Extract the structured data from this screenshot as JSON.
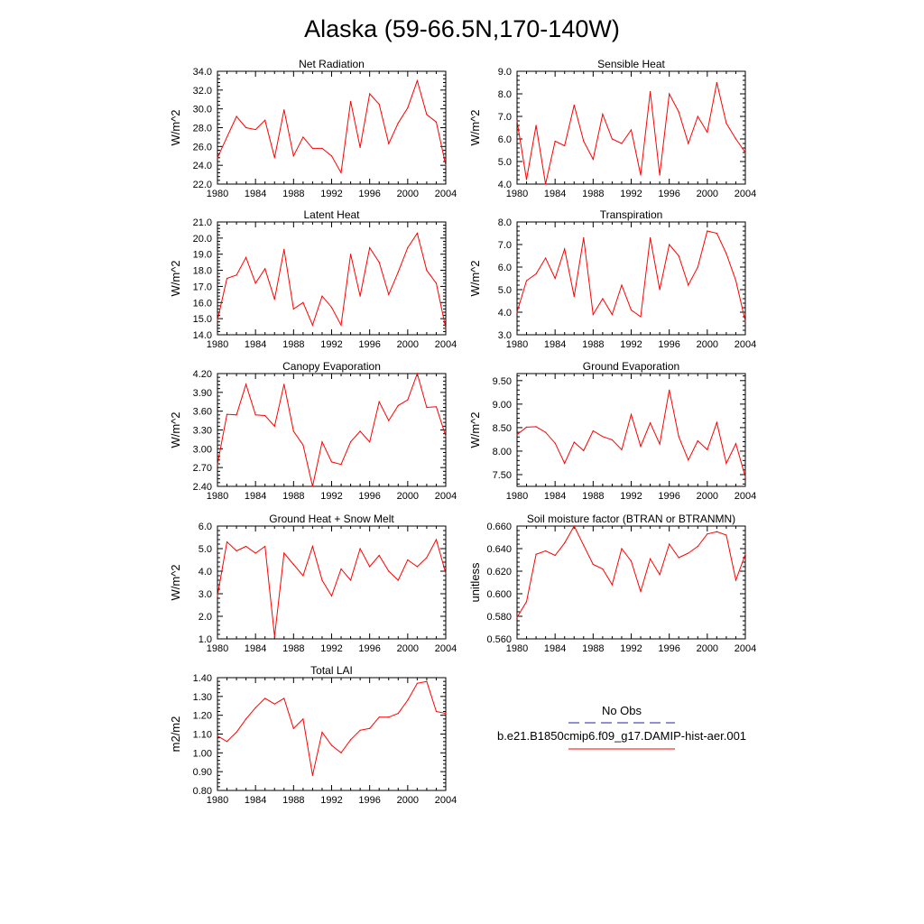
{
  "title": "Alaska (59-66.5N,170-140W)",
  "line_color": "#ff0000",
  "obs_color": "#2222aa",
  "legend": {
    "obs_label": "No Obs",
    "model_label": "b.e21.B1850cmip6.f09_g17.DAMIP-hist-aer.001"
  },
  "chart_data": [
    {
      "type": "line",
      "title": "Net Radiation",
      "ylabel": "W/m^2",
      "xlim": [
        1980,
        2004
      ],
      "ylim": [
        22.0,
        34.0
      ],
      "yticks": [
        "22.0",
        "24.0",
        "26.0",
        "28.0",
        "30.0",
        "32.0",
        "34.0"
      ],
      "xticks": [
        "1980",
        "1984",
        "1988",
        "1992",
        "1996",
        "2000",
        "2004"
      ],
      "x": [
        1980,
        1981,
        1982,
        1983,
        1984,
        1985,
        1986,
        1987,
        1988,
        1989,
        1990,
        1991,
        1992,
        1993,
        1994,
        1995,
        1996,
        1997,
        1998,
        1999,
        2000,
        2001,
        2002,
        2003,
        2004
      ],
      "series": [
        {
          "values": [
            24.8,
            27.0,
            29.2,
            28.0,
            27.8,
            28.8,
            24.8,
            29.9,
            25.0,
            27.0,
            25.8,
            25.8,
            25.0,
            23.2,
            30.8,
            25.9,
            31.6,
            30.5,
            26.3,
            28.5,
            30.1,
            33.0,
            29.4,
            28.6,
            24.0
          ]
        }
      ]
    },
    {
      "type": "line",
      "title": "Sensible Heat",
      "ylabel": "W/m^2",
      "xlim": [
        1980,
        2004
      ],
      "ylim": [
        4.0,
        9.0
      ],
      "yticks": [
        "4.0",
        "5.0",
        "6.0",
        "7.0",
        "8.0",
        "9.0"
      ],
      "xticks": [
        "1980",
        "1984",
        "1988",
        "1992",
        "1996",
        "2000",
        "2004"
      ],
      "x": [
        1980,
        1981,
        1982,
        1983,
        1984,
        1985,
        1986,
        1987,
        1988,
        1989,
        1990,
        1991,
        1992,
        1993,
        1994,
        1995,
        1996,
        1997,
        1998,
        1999,
        2000,
        2001,
        2002,
        2003,
        2004
      ],
      "series": [
        {
          "values": [
            6.8,
            4.2,
            6.6,
            4.0,
            5.9,
            5.7,
            7.5,
            5.9,
            5.1,
            7.1,
            6.0,
            5.8,
            6.4,
            4.4,
            8.1,
            4.4,
            8.0,
            7.2,
            5.8,
            7.0,
            6.3,
            8.5,
            6.7,
            6.0,
            5.4
          ]
        }
      ]
    },
    {
      "type": "line",
      "title": "Latent Heat",
      "ylabel": "W/m^2",
      "xlim": [
        1980,
        2004
      ],
      "ylim": [
        14.0,
        21.0
      ],
      "yticks": [
        "14.0",
        "15.0",
        "16.0",
        "17.0",
        "18.0",
        "19.0",
        "20.0",
        "21.0"
      ],
      "xticks": [
        "1980",
        "1984",
        "1988",
        "1992",
        "1996",
        "2000",
        "2004"
      ],
      "x": [
        1980,
        1981,
        1982,
        1983,
        1984,
        1985,
        1986,
        1987,
        1988,
        1989,
        1990,
        1991,
        1992,
        1993,
        1994,
        1995,
        1996,
        1997,
        1998,
        1999,
        2000,
        2001,
        2002,
        2003,
        2004
      ],
      "series": [
        {
          "values": [
            14.9,
            17.5,
            17.7,
            18.8,
            17.2,
            18.1,
            16.2,
            19.3,
            15.6,
            16.0,
            14.6,
            16.4,
            15.7,
            14.6,
            19.0,
            16.4,
            19.4,
            18.5,
            16.5,
            17.9,
            19.4,
            20.3,
            18.0,
            17.2,
            14.4
          ]
        }
      ]
    },
    {
      "type": "line",
      "title": "Transpiration",
      "ylabel": "W/m^2",
      "xlim": [
        1980,
        2004
      ],
      "ylim": [
        3.0,
        8.0
      ],
      "yticks": [
        "3.0",
        "4.0",
        "5.0",
        "6.0",
        "7.0",
        "8.0"
      ],
      "xticks": [
        "1980",
        "1984",
        "1988",
        "1992",
        "1996",
        "2000",
        "2004"
      ],
      "x": [
        1980,
        1981,
        1982,
        1983,
        1984,
        1985,
        1986,
        1987,
        1988,
        1989,
        1990,
        1991,
        1992,
        1993,
        1994,
        1995,
        1996,
        1997,
        1998,
        1999,
        2000,
        2001,
        2002,
        2003,
        2004
      ],
      "series": [
        {
          "values": [
            4.0,
            5.4,
            5.7,
            6.4,
            5.5,
            6.8,
            4.7,
            7.3,
            3.9,
            4.6,
            3.9,
            5.2,
            4.1,
            3.8,
            7.3,
            5.0,
            7.0,
            6.5,
            5.2,
            6.0,
            7.6,
            7.5,
            6.6,
            5.4,
            3.6
          ]
        }
      ]
    },
    {
      "type": "line",
      "title": "Canopy Evaporation",
      "ylabel": "W/m^2",
      "xlim": [
        1980,
        2004
      ],
      "ylim": [
        2.4,
        4.2
      ],
      "yticks": [
        "2.40",
        "2.70",
        "3.00",
        "3.30",
        "3.60",
        "3.90",
        "4.20"
      ],
      "xticks": [
        "1980",
        "1984",
        "1988",
        "1992",
        "1996",
        "2000",
        "2004"
      ],
      "x": [
        1980,
        1981,
        1982,
        1983,
        1984,
        1985,
        1986,
        1987,
        1988,
        1989,
        1990,
        1991,
        1992,
        1993,
        1994,
        1995,
        1996,
        1997,
        1998,
        1999,
        2000,
        2001,
        2002,
        2003,
        2004
      ],
      "series": [
        {
          "values": [
            2.75,
            3.55,
            3.54,
            4.03,
            3.54,
            3.53,
            3.36,
            4.03,
            3.28,
            3.06,
            2.4,
            3.11,
            2.79,
            2.75,
            3.11,
            3.28,
            3.11,
            3.75,
            3.45,
            3.69,
            3.78,
            4.2,
            3.66,
            3.67,
            3.2
          ]
        }
      ]
    },
    {
      "type": "line",
      "title": "Ground Evaporation",
      "ylabel": "W/m^2",
      "xlim": [
        1980,
        2004
      ],
      "ylim": [
        7.25,
        9.65
      ],
      "yticks": [
        "7.50",
        "8.00",
        "8.50",
        "9.00",
        "9.50"
      ],
      "xticks": [
        "1980",
        "1984",
        "1988",
        "1992",
        "1996",
        "2000",
        "2004"
      ],
      "x": [
        1980,
        1981,
        1982,
        1983,
        1984,
        1985,
        1986,
        1987,
        1988,
        1989,
        1990,
        1991,
        1992,
        1993,
        1994,
        1995,
        1996,
        1997,
        1998,
        1999,
        2000,
        2001,
        2002,
        2003,
        2004
      ],
      "series": [
        {
          "values": [
            8.35,
            8.51,
            8.52,
            8.4,
            8.17,
            7.74,
            8.19,
            8.01,
            8.43,
            8.31,
            8.24,
            8.03,
            8.78,
            8.1,
            8.6,
            8.15,
            9.3,
            8.31,
            7.81,
            8.22,
            8.03,
            8.61,
            7.74,
            8.16,
            7.45
          ]
        }
      ]
    },
    {
      "type": "line",
      "title": "Ground Heat + Snow Melt",
      "ylabel": "W/m^2",
      "xlim": [
        1980,
        2004
      ],
      "ylim": [
        1.0,
        6.0
      ],
      "yticks": [
        "1.0",
        "2.0",
        "3.0",
        "4.0",
        "5.0",
        "6.0"
      ],
      "xticks": [
        "1980",
        "1984",
        "1988",
        "1992",
        "1996",
        "2000",
        "2004"
      ],
      "x": [
        1980,
        1981,
        1982,
        1983,
        1984,
        1985,
        1986,
        1987,
        1988,
        1989,
        1990,
        1991,
        1992,
        1993,
        1994,
        1995,
        1996,
        1997,
        1998,
        1999,
        2000,
        2001,
        2002,
        2003,
        2004
      ],
      "series": [
        {
          "values": [
            2.9,
            5.3,
            4.9,
            5.1,
            4.8,
            5.1,
            1.1,
            4.8,
            4.3,
            3.8,
            5.1,
            3.6,
            2.9,
            4.1,
            3.6,
            5.0,
            4.2,
            4.7,
            4.0,
            3.6,
            4.5,
            4.2,
            4.6,
            5.4,
            3.9
          ]
        }
      ]
    },
    {
      "type": "line",
      "title": "Soil moisture factor (BTRAN or BTRANMN)",
      "ylabel": "unitless",
      "xlim": [
        1980,
        2004
      ],
      "ylim": [
        0.56,
        0.66
      ],
      "yticks": [
        "0.560",
        "0.580",
        "0.600",
        "0.620",
        "0.640",
        "0.660"
      ],
      "xticks": [
        "1980",
        "1984",
        "1988",
        "1992",
        "1996",
        "2000",
        "2004"
      ],
      "x": [
        1980,
        1981,
        1982,
        1983,
        1984,
        1985,
        1986,
        1987,
        1988,
        1989,
        1990,
        1991,
        1992,
        1993,
        1994,
        1995,
        1996,
        1997,
        1998,
        1999,
        2000,
        2001,
        2002,
        2003,
        2004
      ],
      "series": [
        {
          "values": [
            0.579,
            0.593,
            0.635,
            0.638,
            0.634,
            0.645,
            0.66,
            0.643,
            0.626,
            0.622,
            0.608,
            0.64,
            0.629,
            0.602,
            0.631,
            0.617,
            0.644,
            0.632,
            0.636,
            0.642,
            0.653,
            0.655,
            0.652,
            0.612,
            0.635
          ]
        }
      ]
    },
    {
      "type": "line",
      "title": "Total LAI",
      "ylabel": "m2/m2",
      "xlim": [
        1980,
        2004
      ],
      "ylim": [
        0.8,
        1.4
      ],
      "yticks": [
        "0.80",
        "0.90",
        "1.00",
        "1.10",
        "1.20",
        "1.30",
        "1.40"
      ],
      "xticks": [
        "1980",
        "1984",
        "1988",
        "1992",
        "1996",
        "2000",
        "2004"
      ],
      "x": [
        1980,
        1981,
        1982,
        1983,
        1984,
        1985,
        1986,
        1987,
        1988,
        1989,
        1990,
        1991,
        1992,
        1993,
        1994,
        1995,
        1996,
        1997,
        1998,
        1999,
        2000,
        2001,
        2002,
        2003,
        2004
      ],
      "series": [
        {
          "values": [
            1.09,
            1.06,
            1.11,
            1.18,
            1.24,
            1.29,
            1.26,
            1.29,
            1.13,
            1.18,
            0.88,
            1.11,
            1.04,
            1.0,
            1.07,
            1.12,
            1.13,
            1.19,
            1.19,
            1.21,
            1.28,
            1.37,
            1.38,
            1.22,
            1.21
          ]
        }
      ]
    }
  ]
}
